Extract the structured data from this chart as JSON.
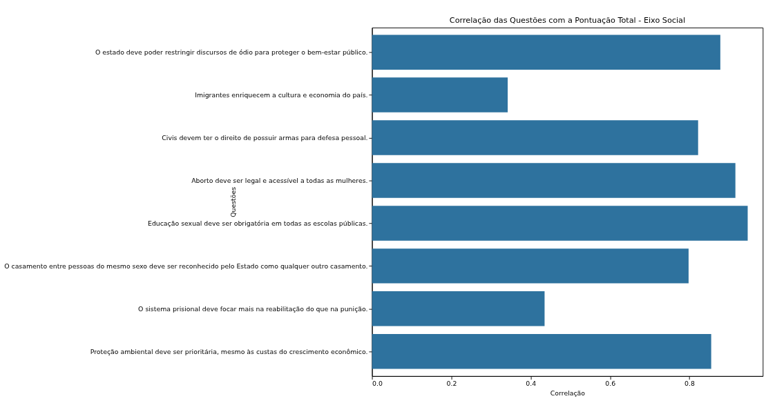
{
  "chart_data": {
    "type": "bar",
    "orientation": "horizontal",
    "title": "Correlação das Questões com a Pontuação Total - Eixo Social",
    "xlabel": "Correlação",
    "ylabel": "Questões",
    "categories": [
      "O estado deve poder restringir discursos de ódio para proteger o bem-estar público.",
      "Imigrantes enriquecem a cultura e economia do país.",
      "Civis devem ter o direito de possuir armas para defesa pessoal.",
      "Aborto deve ser legal e acessível a todas as mulheres.",
      "Educação sexual deve ser obrigatória em todas as escolas públicas.",
      "O casamento entre pessoas do mesmo sexo deve ser reconhecido pelo Estado como qualquer outro casamento.",
      "O sistema prisional deve focar mais na reabilitação do que na punição.",
      "Proteção ambiental deve ser prioritária, mesmo às custas do crescimento econômico."
    ],
    "values": [
      0.878,
      0.342,
      0.822,
      0.916,
      0.947,
      0.798,
      0.435,
      0.855
    ],
    "color": "#2e729e",
    "xlim": [
      0,
      0.985
    ],
    "xticks": [
      {
        "value": 0,
        "label": "0.0"
      },
      0.2,
      0.4,
      0.6,
      0.8
    ],
    "grid": false
  }
}
